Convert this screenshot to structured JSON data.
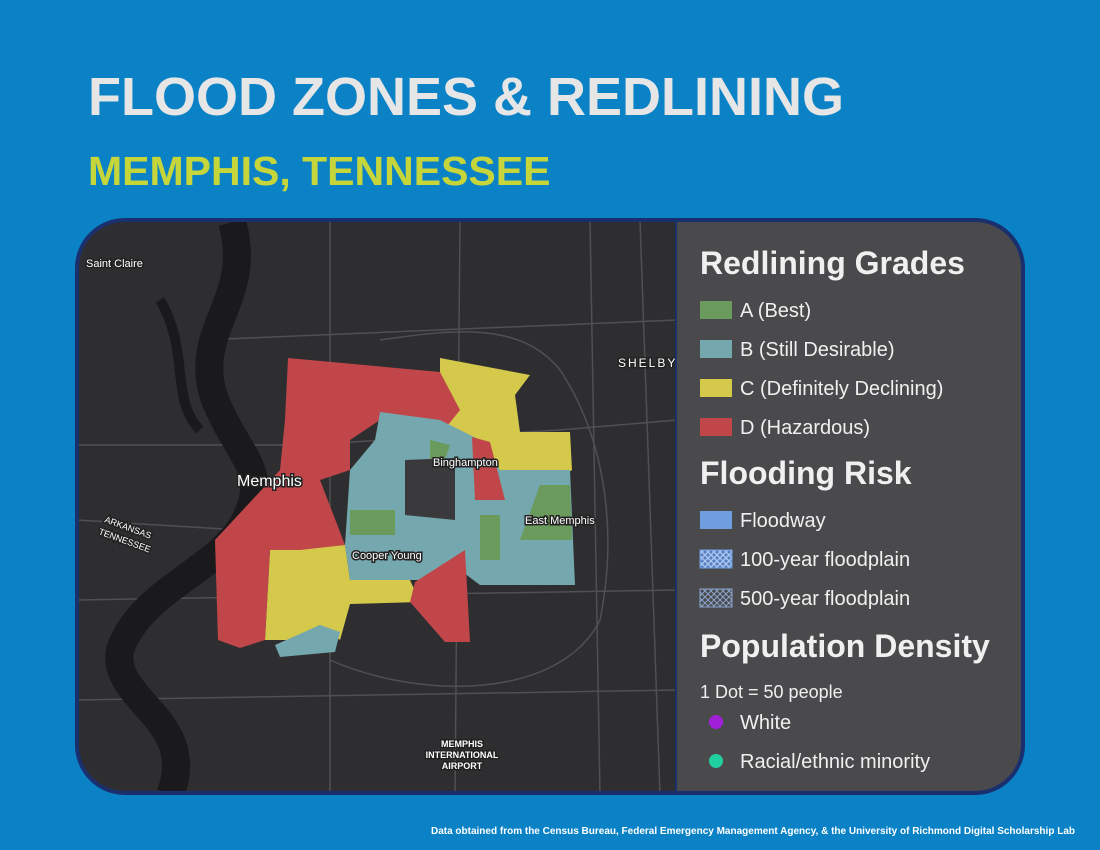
{
  "header": {
    "title": "FLOOD ZONES & REDLINING",
    "subtitle": "MEMPHIS, TENNESSEE"
  },
  "map": {
    "places": [
      "Saint Claire",
      "SHELBY",
      "Memphis",
      "Binghampton",
      "East Memphis",
      "Cooper Young",
      "ARKANSAS",
      "TENNESSEE"
    ],
    "airport": [
      "MEMPHIS",
      "INTERNATIONAL",
      "AIRPORT"
    ]
  },
  "legend": {
    "redlining": {
      "title": "Redlining Grades",
      "items": [
        {
          "label": "A (Best)",
          "color": "#6a9a5c"
        },
        {
          "label": "B (Still Desirable)",
          "color": "#74a7ae"
        },
        {
          "label": "C (Definitely Declining)",
          "color": "#d4c94a"
        },
        {
          "label": "D (Hazardous)",
          "color": "#c0464a"
        }
      ]
    },
    "flooding": {
      "title": "Flooding Risk",
      "items": [
        {
          "label": "Floodway",
          "color": "#6f9fdf"
        },
        {
          "label": "100-year floodplain",
          "color": "#6f9fdf"
        },
        {
          "label": "500-year floodplain",
          "color": "#8aa4cc"
        }
      ]
    },
    "population": {
      "title": "Population Density",
      "note": "1 Dot = 50 people",
      "items": [
        {
          "label": "White",
          "color": "#a020d8"
        },
        {
          "label": "Racial/ethnic minority",
          "color": "#20d0a0"
        }
      ]
    }
  },
  "footer": "Data obtained from the Census Bureau, Federal Emergency Management Agency, & the University of Richmond Digital Scholarship Lab"
}
